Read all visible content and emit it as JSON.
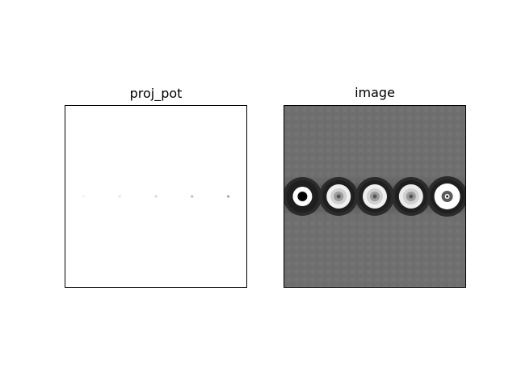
{
  "figure": {
    "panels": [
      {
        "title": "proj_pot"
      },
      {
        "title": "image"
      }
    ]
  },
  "chart_data": [
    {
      "type": "heatmap",
      "title": "proj_pot",
      "colormap": "grayscale-inverted",
      "background": "#ffffff",
      "axes_ticks": "off",
      "atoms": [
        {
          "x": 0.1,
          "y": 0.5,
          "intensity": 0.05
        },
        {
          "x": 0.3,
          "y": 0.5,
          "intensity": 0.1
        },
        {
          "x": 0.5,
          "y": 0.5,
          "intensity": 0.15
        },
        {
          "x": 0.7,
          "y": 0.5,
          "intensity": 0.25
        },
        {
          "x": 0.9,
          "y": 0.5,
          "intensity": 0.35
        }
      ]
    },
    {
      "type": "heatmap",
      "title": "image",
      "colormap": "grayscale",
      "background": "#6e6e6e",
      "axes_ticks": "off",
      "atoms": [
        {
          "x": 0.1,
          "y": 0.5,
          "center": "dark",
          "ring_brightness": 1.0
        },
        {
          "x": 0.3,
          "y": 0.5,
          "center": "gray",
          "ring_brightness": 0.85
        },
        {
          "x": 0.5,
          "y": 0.5,
          "center": "gray",
          "ring_brightness": 0.85
        },
        {
          "x": 0.7,
          "y": 0.5,
          "center": "gray",
          "ring_brightness": 0.8
        },
        {
          "x": 0.9,
          "y": 0.5,
          "center": "dark",
          "ring_brightness": 1.0
        }
      ]
    }
  ]
}
